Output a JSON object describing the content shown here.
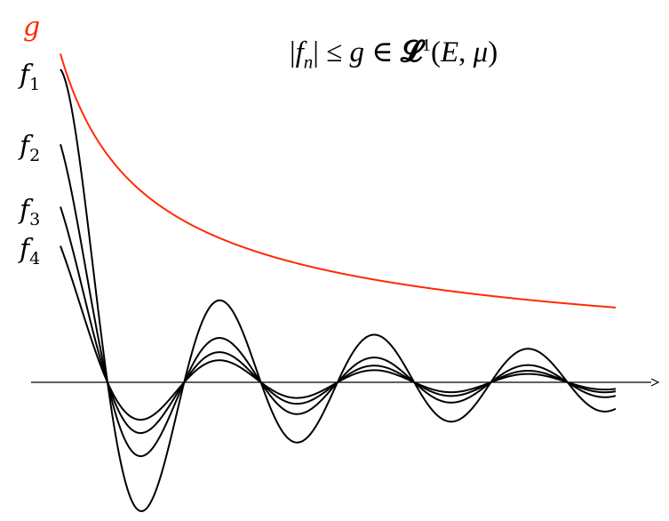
{
  "labels": {
    "g": {
      "name": "g",
      "color": "#ff2a00"
    },
    "f": [
      {
        "name": "f",
        "index": "1"
      },
      {
        "name": "f",
        "index": "2"
      },
      {
        "name": "f",
        "index": "3"
      },
      {
        "name": "f",
        "index": "4"
      }
    ]
  },
  "formula": {
    "bar_open": "|",
    "f": "f",
    "n": "n",
    "bar_close": "|",
    "leq": " ≤ ",
    "g": "g",
    "in": " ∈ ",
    "space": "𝓛",
    "exp": "1",
    "args": "(",
    "E": "E",
    "comma": ", ",
    "mu": "μ",
    "close": ")"
  },
  "colors": {
    "dominating": "#ff2a00",
    "sequence": "#000000",
    "axis": "#000000"
  }
}
